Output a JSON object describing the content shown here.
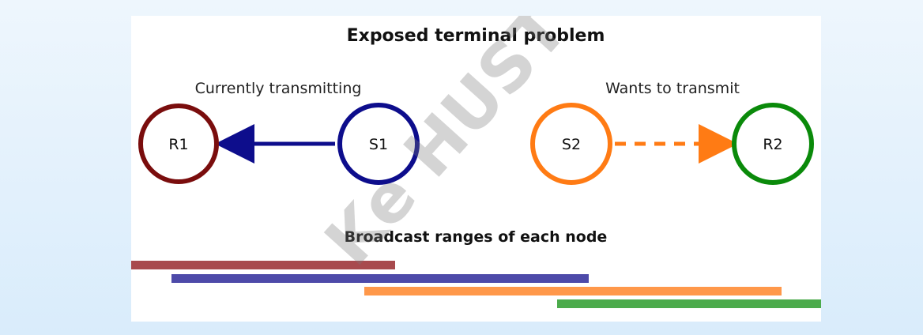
{
  "diagram": {
    "title": "Exposed terminal problem",
    "left_caption": "Currently transmitting",
    "right_caption": "Wants to transmit",
    "ranges_title": "Broadcast ranges of each node"
  },
  "nodes": [
    {
      "id": "r1",
      "label": "R1",
      "color": "#7a0d0d"
    },
    {
      "id": "s1",
      "label": "S1",
      "color": "#0d0d8c"
    },
    {
      "id": "s2",
      "label": "S2",
      "color": "#ff7b14"
    },
    {
      "id": "r2",
      "label": "R2",
      "color": "#0a8a0a"
    }
  ],
  "edges": [
    {
      "from": "S1",
      "to": "R1",
      "style": "solid",
      "color": "#0d0d8c"
    },
    {
      "from": "S2",
      "to": "R2",
      "style": "dashed",
      "color": "#ff7b14"
    }
  ],
  "ranges": [
    {
      "node": "R1",
      "color": "#a84a4e"
    },
    {
      "node": "S1",
      "color": "#4d4aa9"
    },
    {
      "node": "S2",
      "color": "#ff984a"
    },
    {
      "node": "R2",
      "color": "#4cab4c"
    }
  ],
  "watermark": {
    "text": "Ke HUST"
  }
}
